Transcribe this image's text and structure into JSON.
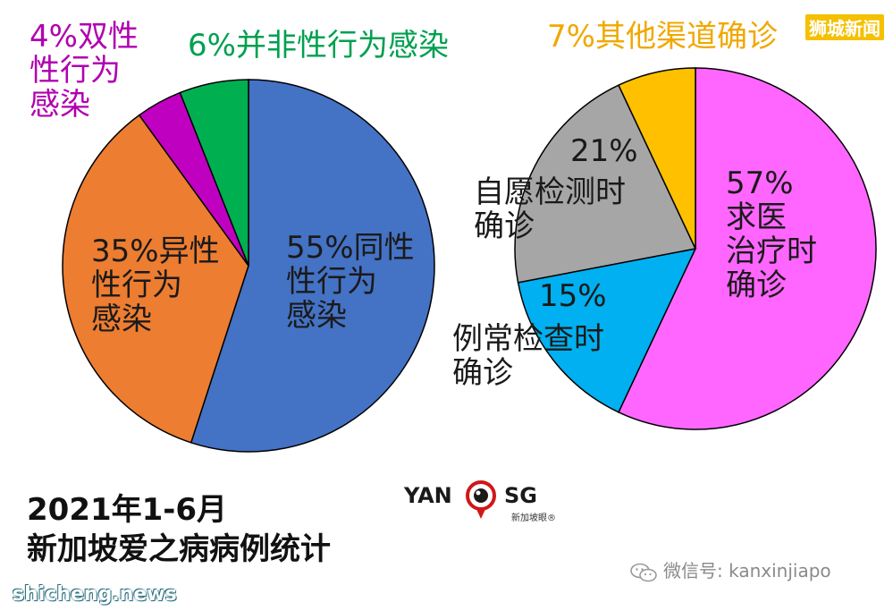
{
  "chart_data": [
    {
      "type": "pie",
      "title": "",
      "slices": [
        {
          "label": "55%同性\n性行为\n感染",
          "value": 55,
          "color": "#4472C4"
        },
        {
          "label": "35%异性\n性行为\n感染",
          "value": 35,
          "color": "#ED7D31"
        },
        {
          "label": "4%双性\n性行为\n感染",
          "value": 4,
          "color": "#C000C0"
        },
        {
          "label": "6%并非性行为感染",
          "value": 6,
          "color": "#00B050"
        }
      ]
    },
    {
      "type": "pie",
      "title": "",
      "slices": [
        {
          "label": "57%\n求医\n治疗时\n确诊",
          "value": 57,
          "color": "#FF66FF"
        },
        {
          "label": "15%",
          "value": 15,
          "color": "#00B0F0"
        },
        {
          "label": "21%",
          "value": 21,
          "color": "#A6A6A6"
        },
        {
          "label": "7%其他渠道确诊",
          "value": 7,
          "color": "#FFC000"
        }
      ],
      "annotations": [
        {
          "text": "自愿检测时\n确诊"
        },
        {
          "text": "例常检查时\n确诊"
        }
      ]
    }
  ],
  "title_lines": [
    "2021年1-6月",
    "新加坡爱之病病例统计"
  ],
  "watermark_top": "狮城新闻",
  "watermark_bottom": "shicheng.news",
  "logo": {
    "left": "YAN",
    "right": "SG",
    "sub": "新加坡眼®"
  },
  "wechat": "微信号: kanxinjiapo",
  "colors": {
    "label_purple": "#B000B0",
    "label_green": "#00A050",
    "label_orange": "#F0A800",
    "label_dark": "#1a1a1a"
  }
}
